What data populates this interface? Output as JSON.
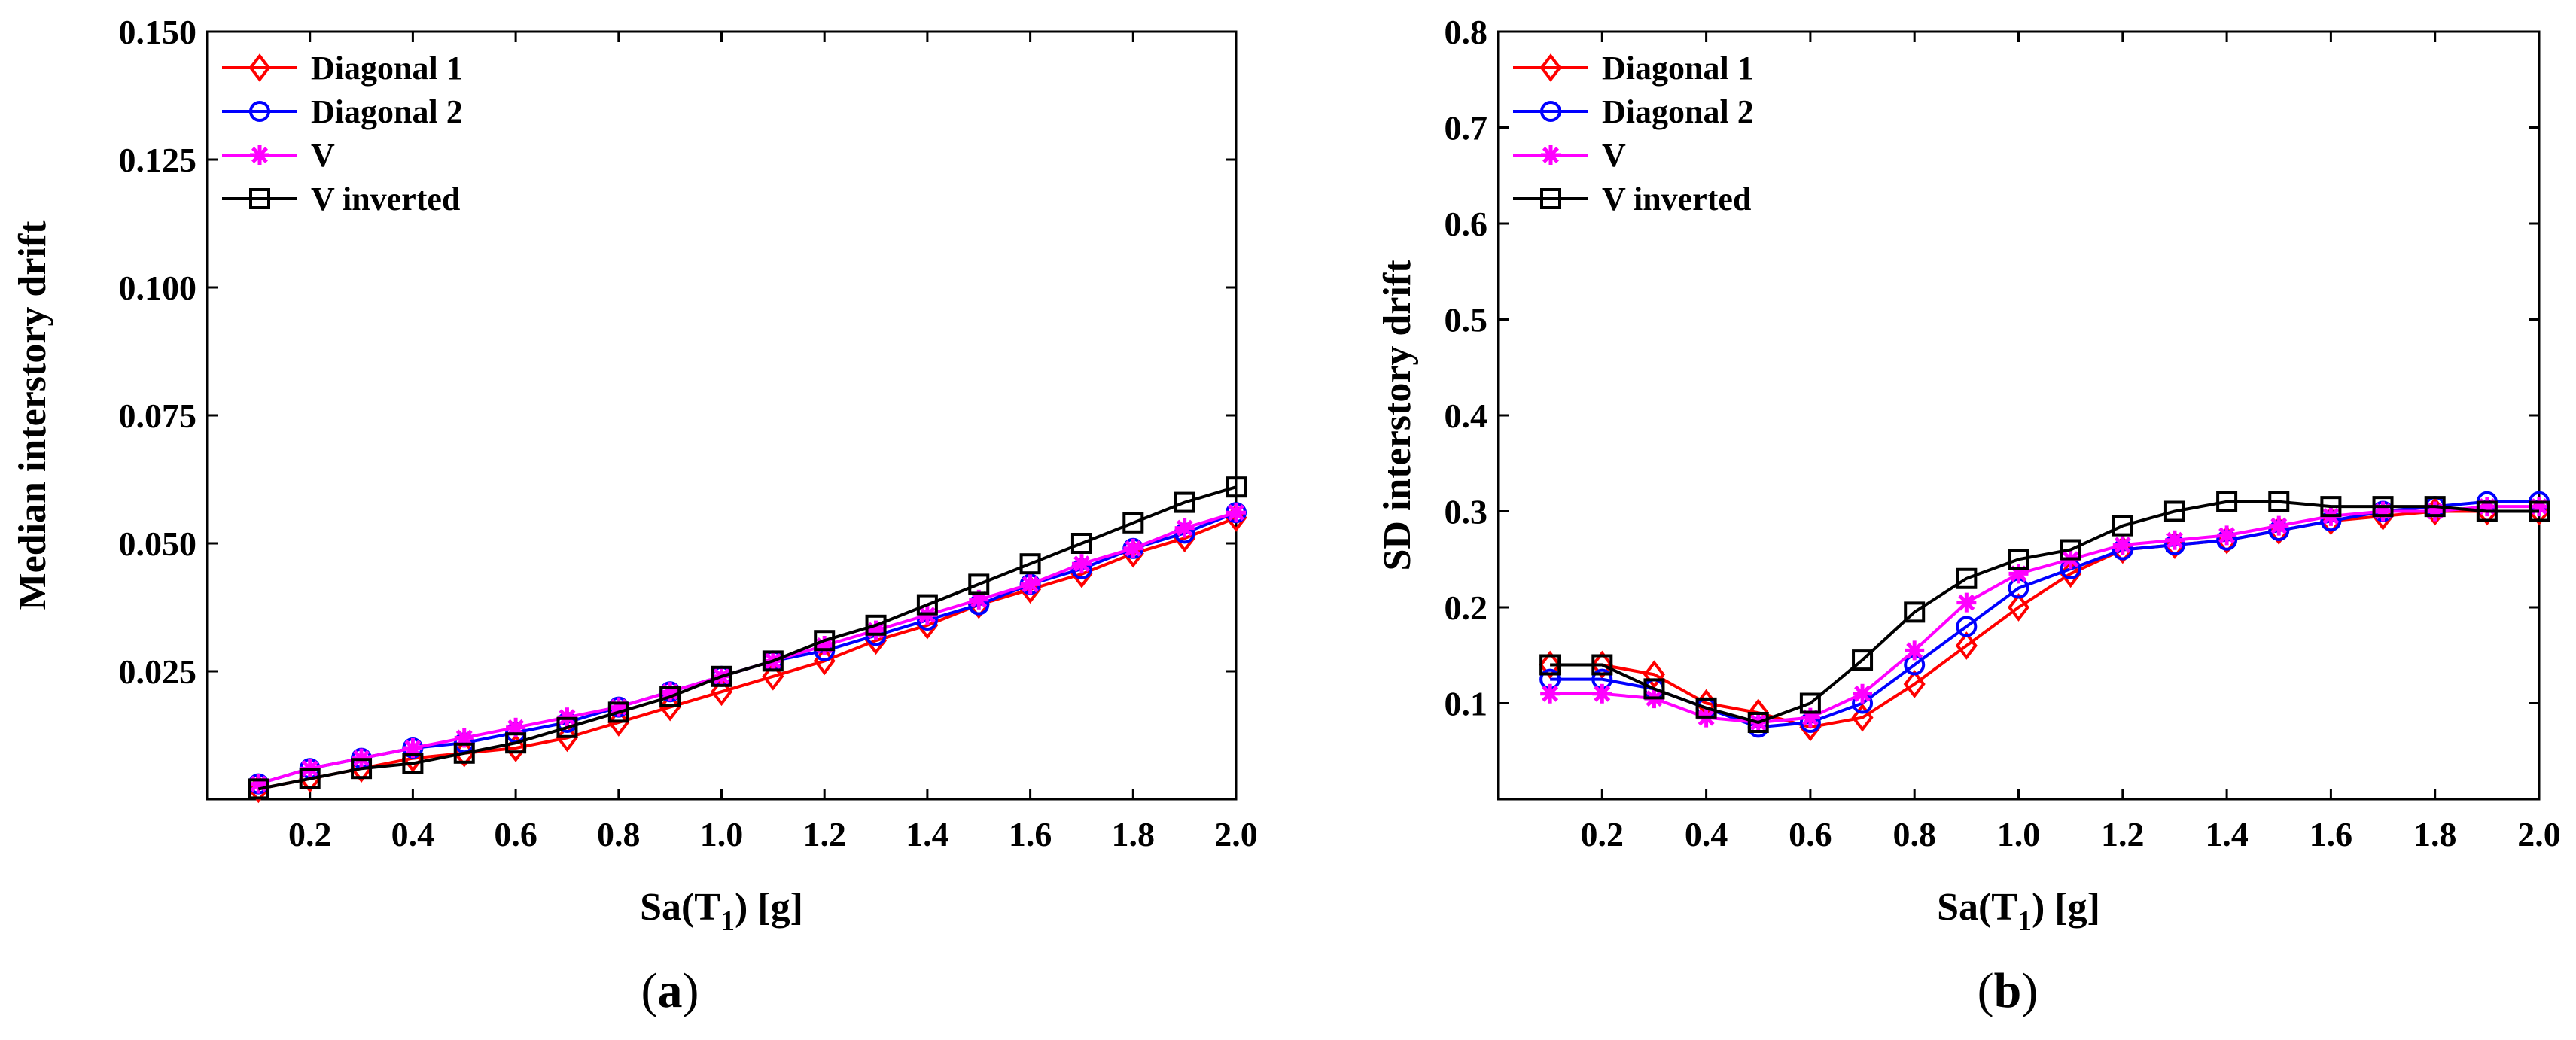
{
  "chart_data": [
    {
      "type": "line",
      "panel_label": "(a)",
      "xlabel_main": "Sa(T",
      "xlabel_sub": "1",
      "xlabel_tail": ") [g]",
      "ylabel": "Median interstory drift",
      "xlim": [
        0.0,
        2.0
      ],
      "ylim": [
        0.0,
        0.15
      ],
      "xticks": [
        0.2,
        0.4,
        0.6,
        0.8,
        1.0,
        1.2,
        1.4,
        1.6,
        1.8,
        2.0
      ],
      "xtick_labels": [
        "0.2",
        "0.4",
        "0.6",
        "0.8",
        "1.0",
        "1.2",
        "1.4",
        "1.6",
        "1.8",
        "2.0"
      ],
      "yticks": [
        0.025,
        0.05,
        0.075,
        0.1,
        0.125,
        0.15
      ],
      "ytick_labels": [
        "0.025",
        "0.050",
        "0.075",
        "0.100",
        "0.125",
        "0.150"
      ],
      "legend_position": "top-left",
      "x": [
        0.1,
        0.2,
        0.3,
        0.4,
        0.5,
        0.6,
        0.7,
        0.8,
        0.9,
        1.0,
        1.1,
        1.2,
        1.3,
        1.4,
        1.5,
        1.6,
        1.7,
        1.8,
        1.9,
        2.0
      ],
      "series": [
        {
          "name": "Diagonal 1",
          "color": "#ff0000",
          "marker": "diamond",
          "values": [
            0.002,
            0.004,
            0.006,
            0.008,
            0.009,
            0.01,
            0.012,
            0.015,
            0.018,
            0.021,
            0.024,
            0.027,
            0.031,
            0.034,
            0.038,
            0.041,
            0.044,
            0.048,
            0.051,
            0.055
          ]
        },
        {
          "name": "Diagonal 2",
          "color": "#0000ff",
          "marker": "circle",
          "values": [
            0.003,
            0.006,
            0.008,
            0.01,
            0.011,
            0.013,
            0.015,
            0.018,
            0.021,
            0.024,
            0.027,
            0.029,
            0.032,
            0.035,
            0.038,
            0.042,
            0.045,
            0.049,
            0.052,
            0.056
          ]
        },
        {
          "name": "V",
          "color": "#ff00ff",
          "marker": "star",
          "values": [
            0.003,
            0.006,
            0.008,
            0.01,
            0.012,
            0.014,
            0.016,
            0.018,
            0.021,
            0.024,
            0.027,
            0.03,
            0.033,
            0.036,
            0.039,
            0.042,
            0.046,
            0.049,
            0.053,
            0.056
          ]
        },
        {
          "name": "V inverted",
          "color": "#000000",
          "marker": "square",
          "values": [
            0.002,
            0.004,
            0.006,
            0.007,
            0.009,
            0.011,
            0.014,
            0.017,
            0.02,
            0.024,
            0.027,
            0.031,
            0.034,
            0.038,
            0.042,
            0.046,
            0.05,
            0.054,
            0.058,
            0.061
          ]
        }
      ]
    },
    {
      "type": "line",
      "panel_label": "(b)",
      "xlabel_main": "Sa(T",
      "xlabel_sub": "1",
      "xlabel_tail": ") [g]",
      "ylabel": "SD interstory drift",
      "xlim": [
        0.0,
        2.0
      ],
      "ylim": [
        0.0,
        0.8
      ],
      "xticks": [
        0.2,
        0.4,
        0.6,
        0.8,
        1.0,
        1.2,
        1.4,
        1.6,
        1.8,
        2.0
      ],
      "xtick_labels": [
        "0.2",
        "0.4",
        "0.6",
        "0.8",
        "1.0",
        "1.2",
        "1.4",
        "1.6",
        "1.8",
        "2.0"
      ],
      "yticks": [
        0.1,
        0.2,
        0.3,
        0.4,
        0.5,
        0.6,
        0.7,
        0.8
      ],
      "ytick_labels": [
        "0.1",
        "0.2",
        "0.3",
        "0.4",
        "0.5",
        "0.6",
        "0.7",
        "0.8"
      ],
      "legend_position": "top-left",
      "x": [
        0.1,
        0.2,
        0.3,
        0.4,
        0.5,
        0.6,
        0.7,
        0.8,
        0.9,
        1.0,
        1.1,
        1.2,
        1.3,
        1.4,
        1.5,
        1.6,
        1.7,
        1.8,
        1.9,
        2.0
      ],
      "series": [
        {
          "name": "Diagonal 1",
          "color": "#ff0000",
          "marker": "diamond",
          "values": [
            0.14,
            0.14,
            0.13,
            0.1,
            0.09,
            0.075,
            0.085,
            0.12,
            0.16,
            0.2,
            0.235,
            0.26,
            0.265,
            0.27,
            0.28,
            0.29,
            0.295,
            0.3,
            0.3,
            0.3
          ]
        },
        {
          "name": "Diagonal 2",
          "color": "#0000ff",
          "marker": "circle",
          "values": [
            0.125,
            0.125,
            0.115,
            0.095,
            0.075,
            0.08,
            0.1,
            0.14,
            0.18,
            0.22,
            0.24,
            0.26,
            0.265,
            0.27,
            0.28,
            0.29,
            0.3,
            0.305,
            0.31,
            0.31
          ]
        },
        {
          "name": "V",
          "color": "#ff00ff",
          "marker": "star",
          "values": [
            0.11,
            0.11,
            0.105,
            0.085,
            0.08,
            0.085,
            0.11,
            0.155,
            0.205,
            0.235,
            0.25,
            0.265,
            0.27,
            0.275,
            0.285,
            0.295,
            0.3,
            0.3,
            0.305,
            0.305
          ]
        },
        {
          "name": "V inverted",
          "color": "#000000",
          "marker": "square",
          "values": [
            0.14,
            0.14,
            0.115,
            0.095,
            0.08,
            0.1,
            0.145,
            0.195,
            0.23,
            0.25,
            0.26,
            0.285,
            0.3,
            0.31,
            0.31,
            0.305,
            0.305,
            0.305,
            0.3,
            0.3
          ]
        }
      ]
    }
  ]
}
